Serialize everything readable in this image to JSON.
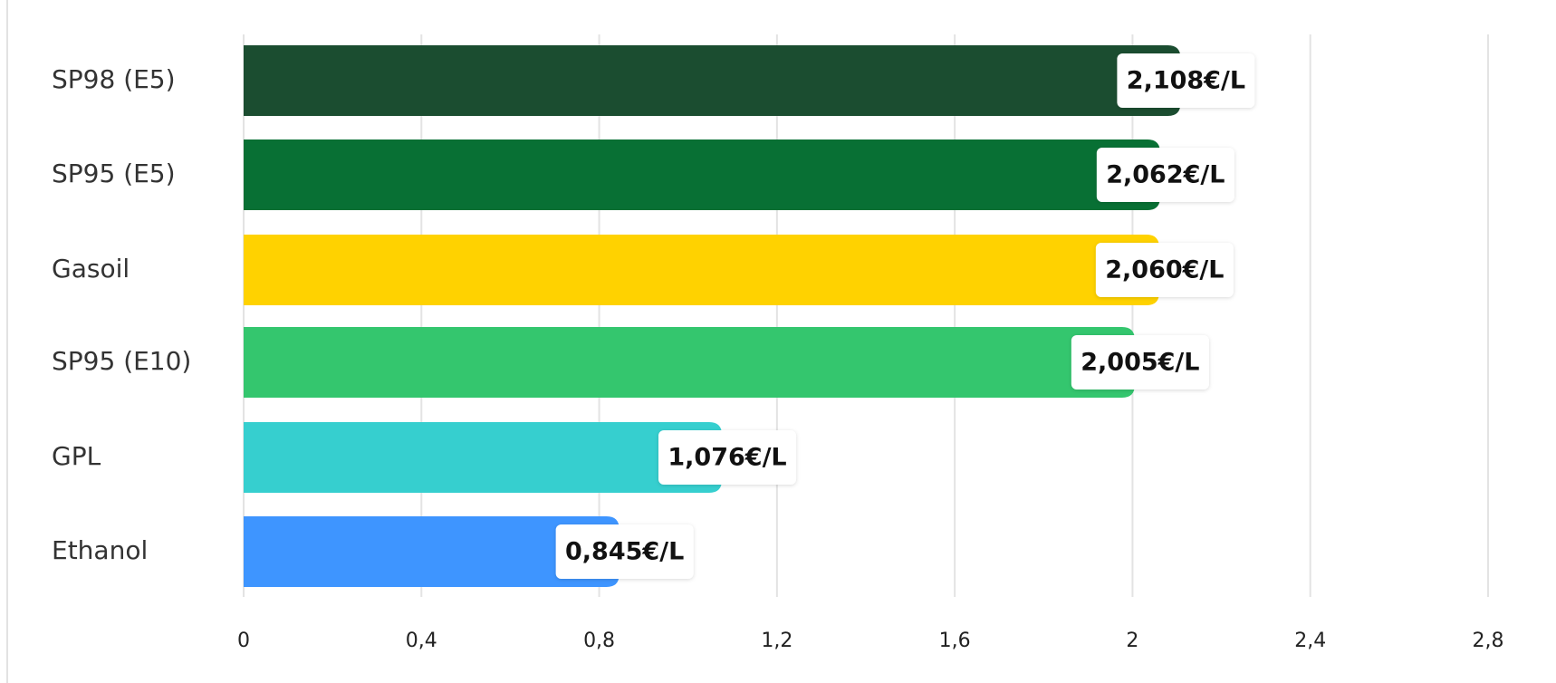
{
  "chart_data": {
    "type": "bar",
    "orientation": "horizontal",
    "categories": [
      "SP98 (E5)",
      "SP95 (E5)",
      "Gasoil",
      "SP95 (E10)",
      "GPL",
      "Ethanol"
    ],
    "values": [
      2.108,
      2.062,
      2.06,
      2.005,
      1.076,
      0.845
    ],
    "value_labels": [
      "2,108€/L",
      "2,062€/L",
      "2,060€/L",
      "2,005€/L",
      "1,076€/L",
      "0,845€/L"
    ],
    "colors": [
      "#1b4d30",
      "#087034",
      "#ffd200",
      "#34c66e",
      "#36cfcf",
      "#3e95ff"
    ],
    "xlim": [
      0,
      2.8
    ],
    "xticks": [
      0,
      {
        "value": 0.4,
        "label": "0,4"
      },
      {
        "value": 0.8,
        "label": "0,8"
      },
      {
        "value": 1.2,
        "label": "1,2"
      },
      {
        "value": 1.6,
        "label": "1,6"
      },
      2,
      {
        "value": 2.4,
        "label": "2,4"
      },
      {
        "value": 2.8,
        "label": "2,8"
      }
    ],
    "grid": true
  }
}
